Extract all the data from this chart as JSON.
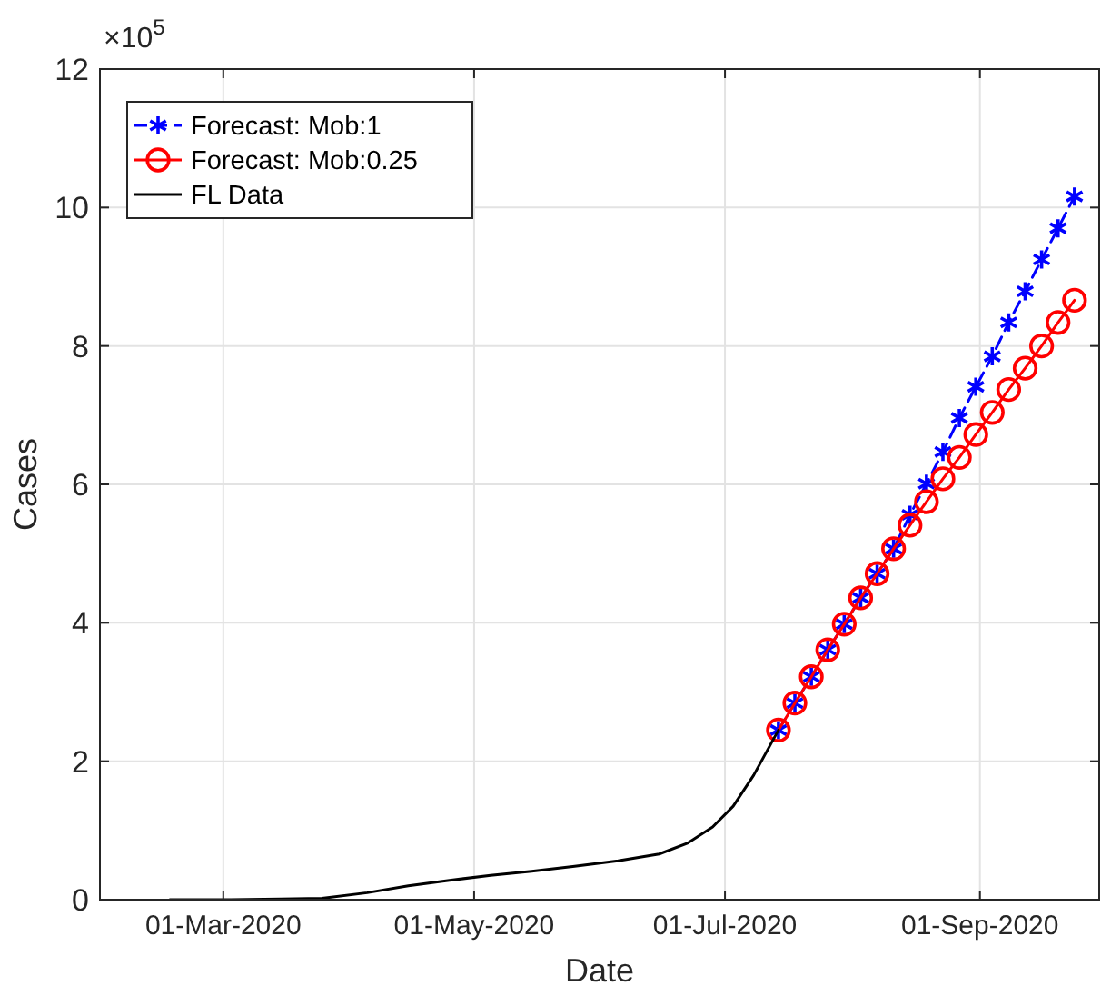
{
  "chart_data": {
    "type": "line",
    "xlabel": "Date",
    "ylabel": "Cases",
    "annotations": [
      "×10$^{5}$"
    ],
    "xlim": [
      "2020-01-31",
      "2020-09-30"
    ],
    "xticks": [
      {
        "value": "2020-03-01",
        "label": "01-Mar-2020"
      },
      {
        "value": "2020-05-01",
        "label": "01-May-2020"
      },
      {
        "value": "2020-07-01",
        "label": "01-Jul-2020"
      },
      {
        "value": "2020-09-01",
        "label": "01-Sep-2020"
      }
    ],
    "ylim": [
      0,
      12
    ],
    "yticks": [
      0,
      2,
      4,
      6,
      8,
      10,
      12
    ],
    "grid": true,
    "legend": "top left",
    "series": [
      {
        "name": "Forecast: Mob:1",
        "color": "#0000ff",
        "marker": "cross",
        "line_style": "dashed",
        "x": [
          "2020-07-14",
          "2020-07-18",
          "2020-07-22",
          "2020-07-26",
          "2020-07-30",
          "2020-08-03",
          "2020-08-07",
          "2020-08-11",
          "2020-08-15",
          "2020-08-19",
          "2020-08-23",
          "2020-08-27",
          "2020-08-31",
          "2020-09-04",
          "2020-09-08",
          "2020-09-12",
          "2020-09-16",
          "2020-09-20",
          "2020-09-24"
        ],
        "values": [
          2.45,
          2.84,
          3.22,
          3.61,
          3.98,
          4.36,
          4.71,
          5.07,
          5.56,
          6.01,
          6.47,
          6.96,
          7.41,
          7.85,
          8.34,
          8.79,
          9.25,
          9.7,
          10.16
        ]
      },
      {
        "name": "Forecast: Mob:0.25",
        "color": "#ff0000",
        "marker": "circle",
        "line_style": "solid",
        "x": [
          "2020-07-14",
          "2020-07-18",
          "2020-07-22",
          "2020-07-26",
          "2020-07-30",
          "2020-08-03",
          "2020-08-07",
          "2020-08-11",
          "2020-08-15",
          "2020-08-19",
          "2020-08-23",
          "2020-08-27",
          "2020-08-31",
          "2020-09-04",
          "2020-09-08",
          "2020-09-12",
          "2020-09-16",
          "2020-09-20",
          "2020-09-24"
        ],
        "values": [
          2.45,
          2.84,
          3.22,
          3.61,
          3.98,
          4.36,
          4.71,
          5.07,
          5.41,
          5.75,
          6.08,
          6.39,
          6.72,
          7.04,
          7.37,
          7.68,
          8.0,
          8.34,
          8.66
        ]
      },
      {
        "name": "FL Data",
        "color": "#000000",
        "marker": "none",
        "line_style": "solid",
        "x": [
          "2020-02-17",
          "2020-03-01",
          "2020-03-15",
          "2020-03-25",
          "2020-04-05",
          "2020-04-15",
          "2020-04-25",
          "2020-05-05",
          "2020-05-15",
          "2020-05-25",
          "2020-06-05",
          "2020-06-15",
          "2020-06-22",
          "2020-06-28",
          "2020-07-03",
          "2020-07-08",
          "2020-07-14"
        ],
        "values": [
          0,
          0,
          0.01,
          0.02,
          0.1,
          0.2,
          0.28,
          0.35,
          0.41,
          0.48,
          0.56,
          0.66,
          0.82,
          1.05,
          1.35,
          1.8,
          2.45
        ]
      }
    ]
  }
}
